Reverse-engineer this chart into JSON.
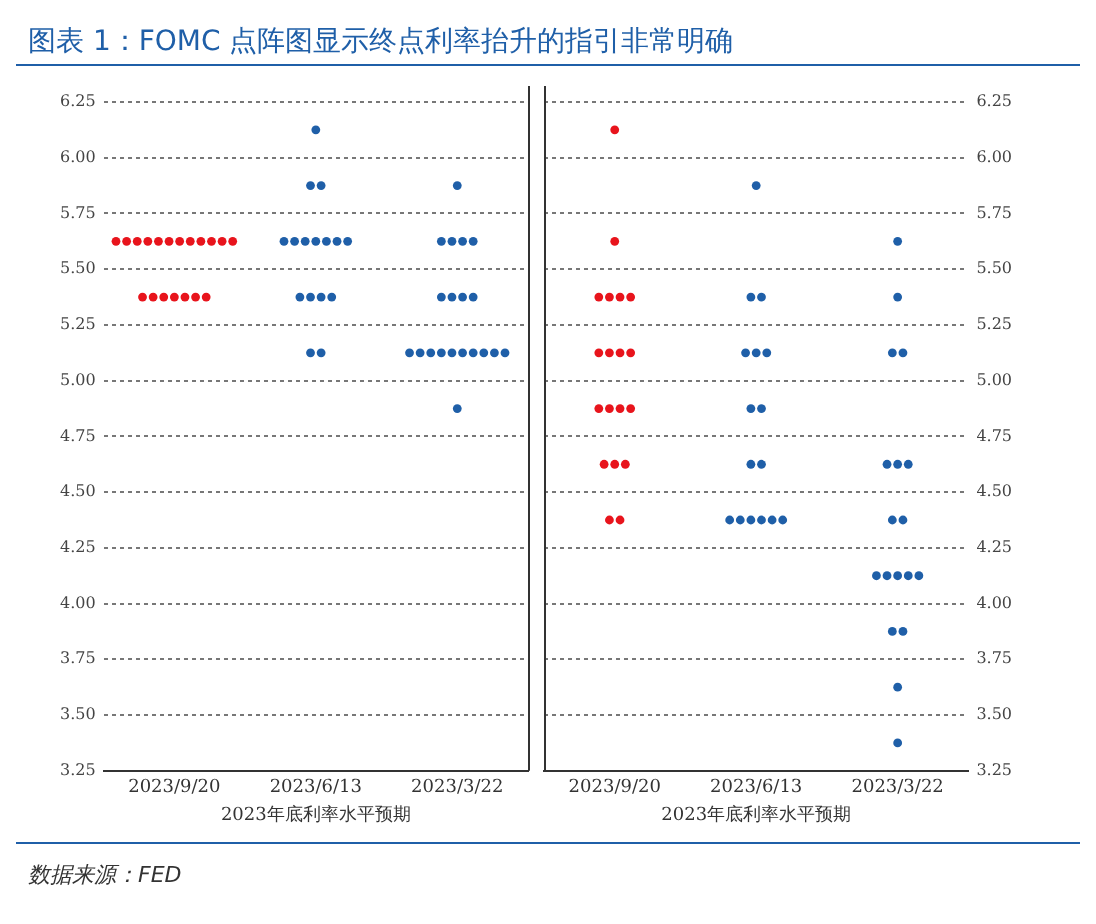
{
  "chart_data": [
    {
      "type": "scatter",
      "title": "图表 1：FOMC 点阵图显示终点利率抬升的指引非常明确",
      "xlabel": "2023年底利率水平预期",
      "categories": [
        "2023/9/20",
        "2023/6/13",
        "2023/3/22"
      ],
      "series": [
        {
          "type": "scatter",
          "color": "#e8141c",
          "x": [
            "2023/9/20",
            "2023/9/20",
            "2023/9/20",
            "2023/9/20",
            "2023/9/20",
            "2023/9/20",
            "2023/9/20",
            "2023/9/20",
            "2023/9/20",
            "2023/9/20",
            "2023/9/20",
            "2023/9/20",
            "2023/9/20",
            "2023/9/20",
            "2023/9/20",
            "2023/9/20",
            "2023/9/20",
            "2023/9/20",
            "2023/9/20"
          ],
          "values": [
            5.625,
            5.625,
            5.625,
            5.625,
            5.625,
            5.625,
            5.625,
            5.625,
            5.625,
            5.625,
            5.625,
            5.625,
            5.375,
            5.375,
            5.375,
            5.375,
            5.375,
            5.375,
            5.375
          ]
        },
        {
          "type": "scatter",
          "color": "#1f5fa8",
          "x": [
            "2023/6/13",
            "2023/6/13",
            "2023/6/13",
            "2023/6/13",
            "2023/6/13",
            "2023/6/13",
            "2023/6/13",
            "2023/6/13",
            "2023/6/13",
            "2023/6/13",
            "2023/6/13",
            "2023/6/13",
            "2023/6/13",
            "2023/6/13",
            "2023/6/13",
            "2023/6/13",
            "2023/3/22",
            "2023/3/22",
            "2023/3/22",
            "2023/3/22",
            "2023/3/22",
            "2023/3/22",
            "2023/3/22",
            "2023/3/22",
            "2023/3/22",
            "2023/3/22",
            "2023/3/22",
            "2023/3/22",
            "2023/3/22",
            "2023/3/22",
            "2023/3/22",
            "2023/3/22",
            "2023/3/22",
            "2023/3/22",
            "2023/3/22",
            "2023/3/22"
          ],
          "values": [
            6.125,
            5.875,
            5.875,
            5.625,
            5.625,
            5.625,
            5.625,
            5.625,
            5.625,
            5.625,
            5.375,
            5.375,
            5.375,
            5.375,
            5.125,
            5.125,
            5.875,
            5.625,
            5.625,
            5.625,
            5.625,
            5.375,
            5.375,
            5.375,
            5.375,
            5.125,
            5.125,
            5.125,
            5.125,
            5.125,
            5.125,
            5.125,
            5.125,
            5.125,
            5.125,
            4.875
          ]
        }
      ],
      "ylim": [
        3.25,
        6.25
      ],
      "yticks": [
        {
          "value": 3.25,
          "label": "3.25"
        },
        {
          "value": 3.5,
          "label": "3.50"
        },
        {
          "value": 3.75,
          "label": "3.75"
        },
        {
          "value": 4,
          "label": "4.00"
        },
        {
          "value": 4.25,
          "label": "4.25"
        },
        {
          "value": 4.5,
          "label": "4.50"
        },
        {
          "value": 4.75,
          "label": "4.75"
        },
        {
          "value": 5,
          "label": "5.00"
        },
        {
          "value": 5.25,
          "label": "5.25"
        },
        {
          "value": 5.5,
          "label": "5.50"
        },
        {
          "value": 5.75,
          "label": "5.75"
        },
        {
          "value": 6,
          "label": "6.00"
        },
        {
          "value": 6.25,
          "label": "6.25"
        }
      ],
      "grid": "y",
      "marker": "circle",
      "legend": false,
      "annotations": [
        "数据来源：FED"
      ]
    },
    {
      "type": "scatter",
      "xlabel": "2023年底利率水平预期",
      "categories": [
        "2023/9/20",
        "2023/6/13",
        "2023/3/22"
      ],
      "series": [
        {
          "type": "scatter",
          "color": "#e8141c",
          "x": [
            "2023/9/20",
            "2023/9/20",
            "2023/9/20",
            "2023/9/20",
            "2023/9/20",
            "2023/9/20",
            "2023/9/20",
            "2023/9/20",
            "2023/9/20",
            "2023/9/20",
            "2023/9/20",
            "2023/9/20",
            "2023/9/20",
            "2023/9/20",
            "2023/9/20",
            "2023/9/20",
            "2023/9/20",
            "2023/9/20",
            "2023/9/20"
          ],
          "values": [
            6.125,
            5.625,
            5.375,
            5.375,
            5.375,
            5.375,
            5.125,
            5.125,
            5.125,
            5.125,
            4.875,
            4.875,
            4.875,
            4.875,
            4.625,
            4.625,
            4.625,
            4.375,
            4.375
          ]
        },
        {
          "type": "scatter",
          "color": "#1f5fa8",
          "x": [
            "2023/6/13",
            "2023/6/13",
            "2023/6/13",
            "2023/6/13",
            "2023/6/13",
            "2023/6/13",
            "2023/6/13",
            "2023/6/13",
            "2023/6/13",
            "2023/6/13",
            "2023/6/13",
            "2023/6/13",
            "2023/6/13",
            "2023/6/13",
            "2023/6/13",
            "2023/6/13",
            "2023/3/22",
            "2023/3/22",
            "2023/3/22",
            "2023/3/22",
            "2023/3/22",
            "2023/3/22",
            "2023/3/22",
            "2023/3/22",
            "2023/3/22",
            "2023/3/22",
            "2023/3/22",
            "2023/3/22",
            "2023/3/22",
            "2023/3/22",
            "2023/3/22",
            "2023/3/22",
            "2023/3/22",
            "2023/3/22"
          ],
          "values": [
            5.875,
            5.375,
            5.375,
            5.125,
            5.125,
            5.125,
            4.875,
            4.875,
            4.625,
            4.625,
            4.375,
            4.375,
            4.375,
            4.375,
            4.375,
            4.375,
            5.625,
            5.375,
            5.125,
            5.125,
            4.625,
            4.625,
            4.625,
            4.375,
            4.375,
            4.125,
            4.125,
            4.125,
            4.125,
            4.125,
            3.875,
            3.875,
            3.625,
            3.375
          ]
        }
      ],
      "ylim": [
        3.25,
        6.25
      ],
      "yticks": [
        {
          "value": 3.25,
          "label": "3.25"
        },
        {
          "value": 3.5,
          "label": "3.50"
        },
        {
          "value": 3.75,
          "label": "3.75"
        },
        {
          "value": 4,
          "label": "4.00"
        },
        {
          "value": 4.25,
          "label": "4.25"
        },
        {
          "value": 4.5,
          "label": "4.50"
        },
        {
          "value": 4.75,
          "label": "4.75"
        },
        {
          "value": 5,
          "label": "5.00"
        },
        {
          "value": 5.25,
          "label": "5.25"
        },
        {
          "value": 5.5,
          "label": "5.50"
        },
        {
          "value": 5.75,
          "label": "5.75"
        },
        {
          "value": 6,
          "label": "6.00"
        },
        {
          "value": 6.25,
          "label": "6.25"
        }
      ],
      "grid": "y",
      "marker": "circle",
      "legend": false
    }
  ]
}
